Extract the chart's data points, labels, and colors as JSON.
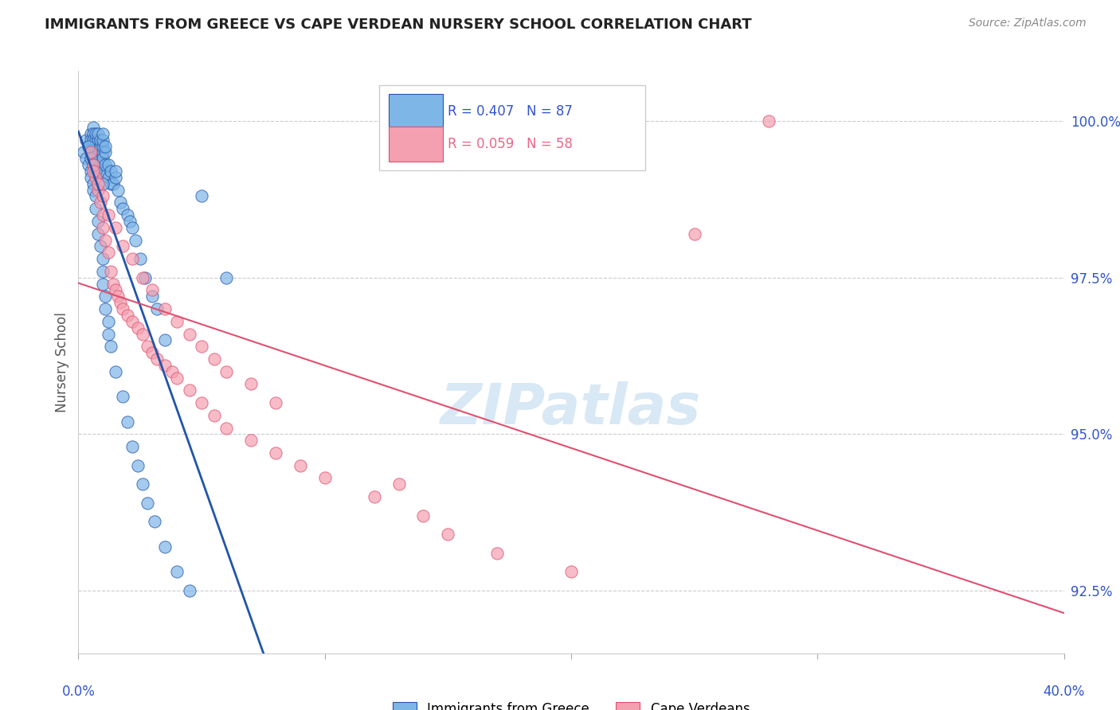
{
  "title": "IMMIGRANTS FROM GREECE VS CAPE VERDEAN NURSERY SCHOOL CORRELATION CHART",
  "source": "Source: ZipAtlas.com",
  "ylabel": "Nursery School",
  "yticks": [
    92.5,
    95.0,
    97.5,
    100.0
  ],
  "ytick_labels": [
    "92.5%",
    "95.0%",
    "97.5%",
    "100.0%"
  ],
  "xmin": 0.0,
  "xmax": 40.0,
  "ymin": 91.5,
  "ymax": 100.8,
  "legend_label1": "Immigrants from Greece",
  "legend_label2": "Cape Verdeans",
  "R1": 0.407,
  "N1": 87,
  "R2": 0.059,
  "N2": 58,
  "color_blue": "#7EB6E8",
  "color_pink": "#F4A0B0",
  "color_blue_line": "#2255AA",
  "color_pink_line": "#E05070",
  "color_blue_text": "#3355CC",
  "color_pink_text": "#EE6688",
  "color_grid": "#CCCCCC",
  "color_watermark": "#D8E8F5",
  "background_color": "#FFFFFF",
  "blue_x": [
    0.3,
    0.4,
    0.5,
    0.5,
    0.6,
    0.6,
    0.6,
    0.7,
    0.7,
    0.7,
    0.7,
    0.8,
    0.8,
    0.8,
    0.8,
    0.8,
    0.9,
    0.9,
    0.9,
    0.9,
    1.0,
    1.0,
    1.0,
    1.0,
    1.0,
    1.0,
    1.1,
    1.1,
    1.1,
    1.1,
    1.2,
    1.2,
    1.3,
    1.3,
    1.4,
    1.5,
    1.5,
    1.6,
    1.7,
    1.8,
    2.0,
    2.1,
    2.2,
    2.3,
    2.5,
    2.7,
    3.0,
    3.2,
    3.5,
    0.2,
    0.3,
    0.4,
    0.5,
    0.5,
    0.6,
    0.6,
    0.7,
    0.7,
    0.8,
    0.8,
    0.9,
    1.0,
    1.0,
    1.0,
    1.1,
    1.1,
    1.2,
    1.2,
    1.3,
    1.5,
    1.8,
    2.0,
    2.2,
    2.4,
    2.6,
    2.8,
    3.1,
    3.5,
    4.0,
    4.5,
    5.0,
    6.0,
    0.4,
    0.5,
    0.6,
    0.7,
    1.0
  ],
  "blue_y": [
    99.7,
    99.6,
    99.8,
    99.7,
    99.9,
    99.8,
    99.7,
    99.6,
    99.5,
    99.7,
    99.8,
    99.5,
    99.6,
    99.7,
    99.8,
    99.3,
    99.2,
    99.4,
    99.6,
    99.7,
    99.3,
    99.5,
    99.6,
    99.7,
    99.8,
    99.4,
    99.2,
    99.3,
    99.5,
    99.6,
    99.1,
    99.3,
    99.0,
    99.2,
    99.0,
    99.1,
    99.2,
    98.9,
    98.7,
    98.6,
    98.5,
    98.4,
    98.3,
    98.1,
    97.8,
    97.5,
    97.2,
    97.0,
    96.5,
    99.5,
    99.4,
    99.3,
    99.2,
    99.1,
    99.0,
    98.9,
    98.8,
    98.6,
    98.4,
    98.2,
    98.0,
    97.8,
    97.6,
    97.4,
    97.2,
    97.0,
    96.8,
    96.6,
    96.4,
    96.0,
    95.6,
    95.2,
    94.8,
    94.5,
    94.2,
    93.9,
    93.6,
    93.2,
    92.8,
    92.5,
    98.8,
    97.5,
    99.6,
    99.4,
    99.3,
    99.2,
    99.0
  ],
  "pink_x": [
    0.5,
    0.6,
    0.7,
    0.8,
    0.9,
    1.0,
    1.0,
    1.1,
    1.2,
    1.3,
    1.4,
    1.5,
    1.6,
    1.7,
    1.8,
    2.0,
    2.2,
    2.4,
    2.6,
    2.8,
    3.0,
    3.2,
    3.5,
    3.8,
    4.0,
    4.5,
    5.0,
    5.5,
    6.0,
    7.0,
    8.0,
    9.0,
    10.0,
    12.0,
    14.0,
    15.0,
    17.0,
    20.0,
    0.6,
    0.8,
    1.0,
    1.2,
    1.5,
    1.8,
    2.2,
    2.6,
    3.0,
    3.5,
    4.0,
    4.5,
    5.0,
    5.5,
    6.0,
    7.0,
    8.0,
    13.0,
    25.0,
    28.0
  ],
  "pink_y": [
    99.5,
    99.3,
    99.1,
    98.9,
    98.7,
    98.5,
    98.3,
    98.1,
    97.9,
    97.6,
    97.4,
    97.3,
    97.2,
    97.1,
    97.0,
    96.9,
    96.8,
    96.7,
    96.6,
    96.4,
    96.3,
    96.2,
    96.1,
    96.0,
    95.9,
    95.7,
    95.5,
    95.3,
    95.1,
    94.9,
    94.7,
    94.5,
    94.3,
    94.0,
    93.7,
    93.4,
    93.1,
    92.8,
    99.2,
    99.0,
    98.8,
    98.5,
    98.3,
    98.0,
    97.8,
    97.5,
    97.3,
    97.0,
    96.8,
    96.6,
    96.4,
    96.2,
    96.0,
    95.8,
    95.5,
    94.2,
    98.2,
    100.0
  ]
}
